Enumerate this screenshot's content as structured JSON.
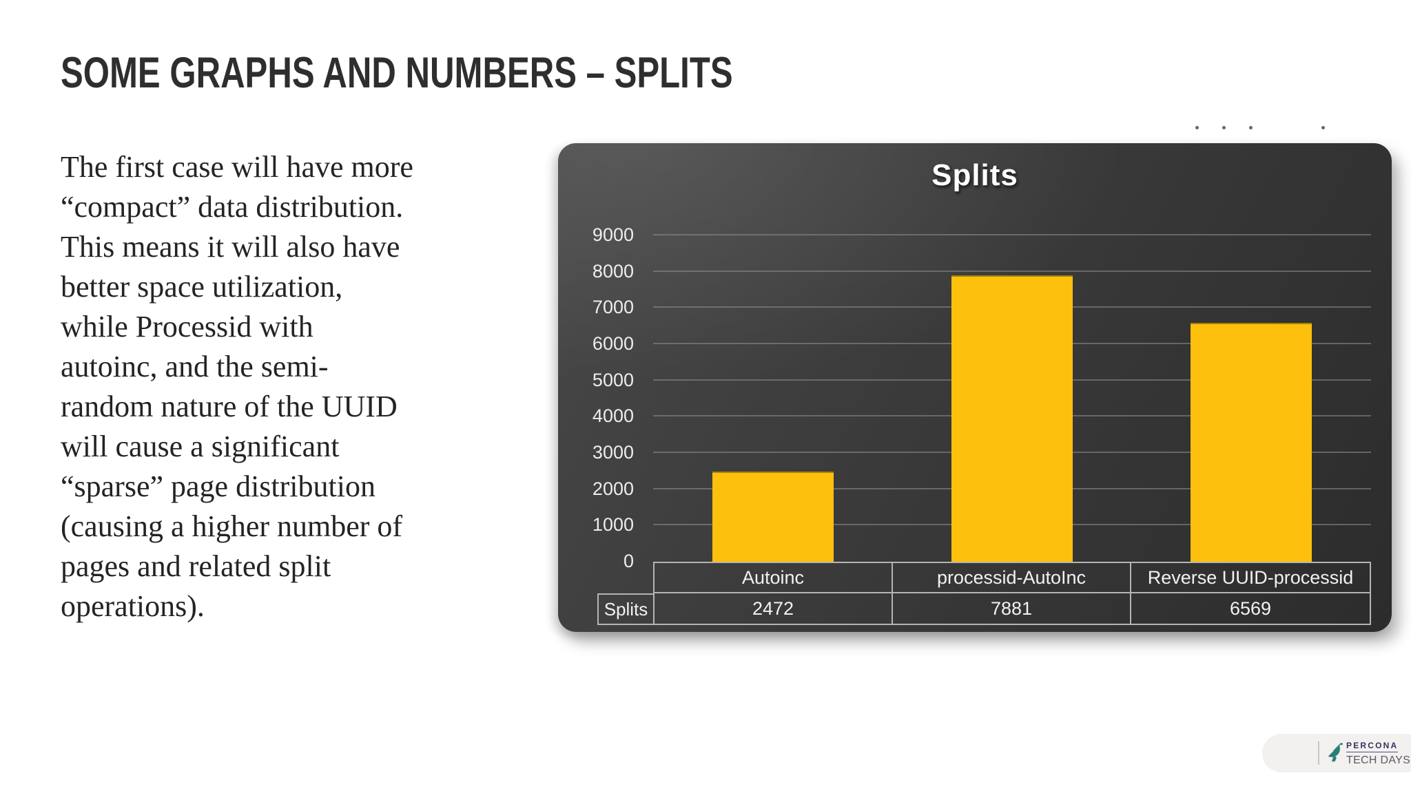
{
  "slide": {
    "title": "SOME GRAPHS AND NUMBERS – SPLITS",
    "body_lines": [
      "The first case will have more",
      "“compact” data distribution.",
      "This means it will also have",
      "better space utilization,",
      "while Processid with",
      "autoinc, and the semi-",
      "random nature of the UUID",
      "will cause a significant",
      "“sparse” page distribution",
      "(causing a higher number of",
      "pages and related split",
      "operations)."
    ]
  },
  "chart_data": {
    "type": "bar",
    "title": "Splits",
    "categories": [
      "Autoinc",
      "processid-AutoInc",
      "Reverse UUID-processid"
    ],
    "series": [
      {
        "name": "Splits",
        "values": [
          2472,
          7881,
          6569
        ]
      }
    ],
    "ylim": [
      0,
      9000
    ],
    "ytick_step": 1000,
    "yticks": [
      9000,
      8000,
      7000,
      6000,
      5000,
      4000,
      3000,
      2000,
      1000,
      0
    ],
    "grid": true,
    "legend_position": "none",
    "data_table_shown": true,
    "bar_color": "#FDC00D",
    "panel_bg": "#3a3a3a",
    "gridline_color": "#8f8f8f",
    "axis_text_color": "#ededed",
    "table_border_color": "#b5b5b5",
    "title_color": "#ffffff"
  },
  "decor": {
    "dots_y": 183,
    "dots_x": [
      1735,
      1774,
      1813,
      1918
    ],
    "dot_color": "#4c4c4c"
  },
  "footer_logo": {
    "brand": "PERCONA",
    "subbrand": "TECH DAYS",
    "brand_color": "#3d2d5e",
    "subbrand_color": "#5a5a62",
    "icon": "satellite-dish-icon",
    "icon_color": "#2a7f76",
    "pill_bg": "#f2f1f0"
  }
}
